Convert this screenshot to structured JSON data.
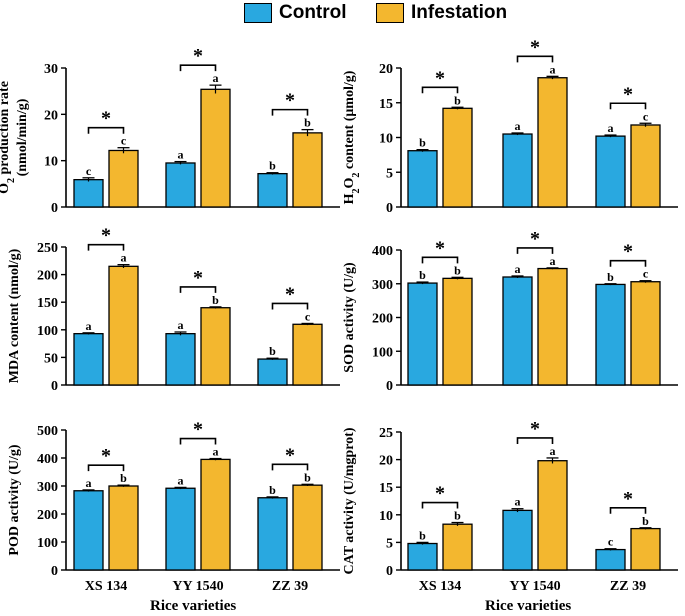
{
  "legend": {
    "control": "Control",
    "infestation": "Infestation"
  },
  "colors": {
    "control": "#29a8e0",
    "infestation": "#f3b72f",
    "axis": "#000000"
  },
  "shared_xlabel": "Rice varieties",
  "chart_data": [
    {
      "type": "bar",
      "panel": "top-left",
      "ylabel_main": "O",
      "ylabel_sub": "2",
      "ylabel_rest": " production rate",
      "ylabel2": "(nmol/min/g)",
      "categories": [
        "XS 134",
        "YY 1540",
        "ZZ 39"
      ],
      "ylim": [
        0,
        30
      ],
      "yticks": [
        0,
        10,
        20,
        30
      ],
      "series": [
        {
          "name": "Control",
          "values": [
            5.9,
            9.5,
            7.2
          ],
          "errors": [
            0.4,
            0.3,
            0.2
          ],
          "letters": [
            "c",
            "a",
            "b"
          ]
        },
        {
          "name": "Infestation",
          "values": [
            12.2,
            25.4,
            16.0
          ],
          "errors": [
            0.6,
            0.9,
            0.7
          ],
          "letters": [
            "c",
            "a",
            "b"
          ]
        }
      ],
      "significance": [
        "*",
        "*",
        "*"
      ]
    },
    {
      "type": "bar",
      "panel": "top-right",
      "ylabel_main": "H",
      "ylabel_sub": "2",
      "ylabel_mid": "O",
      "ylabel_sub2": "2",
      "ylabel_rest": " content (μmol/g)",
      "categories": [
        "XS 134",
        "YY 1540",
        "ZZ 39"
      ],
      "ylim": [
        0,
        20
      ],
      "yticks": [
        0,
        5,
        10,
        15,
        20
      ],
      "series": [
        {
          "name": "Control",
          "values": [
            8.1,
            10.5,
            10.2
          ],
          "errors": [
            0.15,
            0.15,
            0.15
          ],
          "letters": [
            "b",
            "a",
            "a"
          ]
        },
        {
          "name": "Infestation",
          "values": [
            14.2,
            18.6,
            11.8
          ],
          "errors": [
            0.15,
            0.2,
            0.25
          ],
          "letters": [
            "b",
            "a",
            "c"
          ]
        }
      ],
      "significance": [
        "*",
        "*",
        "*"
      ]
    },
    {
      "type": "bar",
      "panel": "middle-left",
      "ylabel": "MDA content (nmol/g)",
      "categories": [
        "XS 134",
        "YY 1540",
        "ZZ 39"
      ],
      "ylim": [
        0,
        250
      ],
      "yticks": [
        0,
        50,
        100,
        150,
        200,
        250
      ],
      "series": [
        {
          "name": "Control",
          "values": [
            93,
            93,
            47
          ],
          "errors": [
            1.5,
            3,
            1.5
          ],
          "letters": [
            "a",
            "a",
            "b"
          ]
        },
        {
          "name": "Infestation",
          "values": [
            215,
            140,
            110
          ],
          "errors": [
            3,
            1.5,
            1.5
          ],
          "letters": [
            "a",
            "b",
            "c"
          ]
        }
      ],
      "significance": [
        "*",
        "*",
        "*"
      ]
    },
    {
      "type": "bar",
      "panel": "middle-right",
      "ylabel": "SOD activity (U/g)",
      "categories": [
        "XS 134",
        "YY 1540",
        "ZZ 39"
      ],
      "ylim": [
        0,
        400
      ],
      "yticks": [
        0,
        100,
        200,
        300,
        400
      ],
      "series": [
        {
          "name": "Control",
          "values": [
            302,
            320,
            298
          ],
          "errors": [
            3,
            3,
            2
          ],
          "letters": [
            "b",
            "a",
            "b"
          ]
        },
        {
          "name": "Infestation",
          "values": [
            316,
            345,
            306
          ],
          "errors": [
            3,
            2,
            3
          ],
          "letters": [
            "b",
            "a",
            "c"
          ]
        }
      ],
      "significance": [
        "*",
        "*",
        "*"
      ]
    },
    {
      "type": "bar",
      "panel": "bottom-left",
      "ylabel": "POD activity (U/g)",
      "xlabel": "Rice varieties",
      "categories": [
        "XS 134",
        "YY 1540",
        "ZZ 39"
      ],
      "ylim": [
        0,
        500
      ],
      "yticks": [
        0,
        100,
        200,
        300,
        400,
        500
      ],
      "series": [
        {
          "name": "Control",
          "values": [
            283,
            292,
            258
          ],
          "errors": [
            3,
            3,
            3
          ],
          "letters": [
            "a",
            "a",
            "b"
          ]
        },
        {
          "name": "Infestation",
          "values": [
            300,
            395,
            303
          ],
          "errors": [
            3,
            3,
            3
          ],
          "letters": [
            "b",
            "a",
            "b"
          ]
        }
      ],
      "significance": [
        "*",
        "*",
        "*"
      ]
    },
    {
      "type": "bar",
      "panel": "bottom-right",
      "ylabel": "CAT activity (U/mgprot)",
      "xlabel": "Rice varieties",
      "categories": [
        "XS 134",
        "YY 1540",
        "ZZ 39"
      ],
      "ylim": [
        0,
        25
      ],
      "yticks": [
        0,
        5,
        10,
        15,
        20,
        25
      ],
      "series": [
        {
          "name": "Control",
          "values": [
            4.8,
            10.8,
            3.7
          ],
          "errors": [
            0.2,
            0.3,
            0.15
          ],
          "letters": [
            "b",
            "a",
            "c"
          ]
        },
        {
          "name": "Infestation",
          "values": [
            8.3,
            19.8,
            7.5
          ],
          "errors": [
            0.3,
            0.5,
            0.15
          ],
          "letters": [
            "b",
            "a",
            "b"
          ]
        }
      ],
      "significance": [
        "*",
        "*",
        "*"
      ]
    }
  ]
}
